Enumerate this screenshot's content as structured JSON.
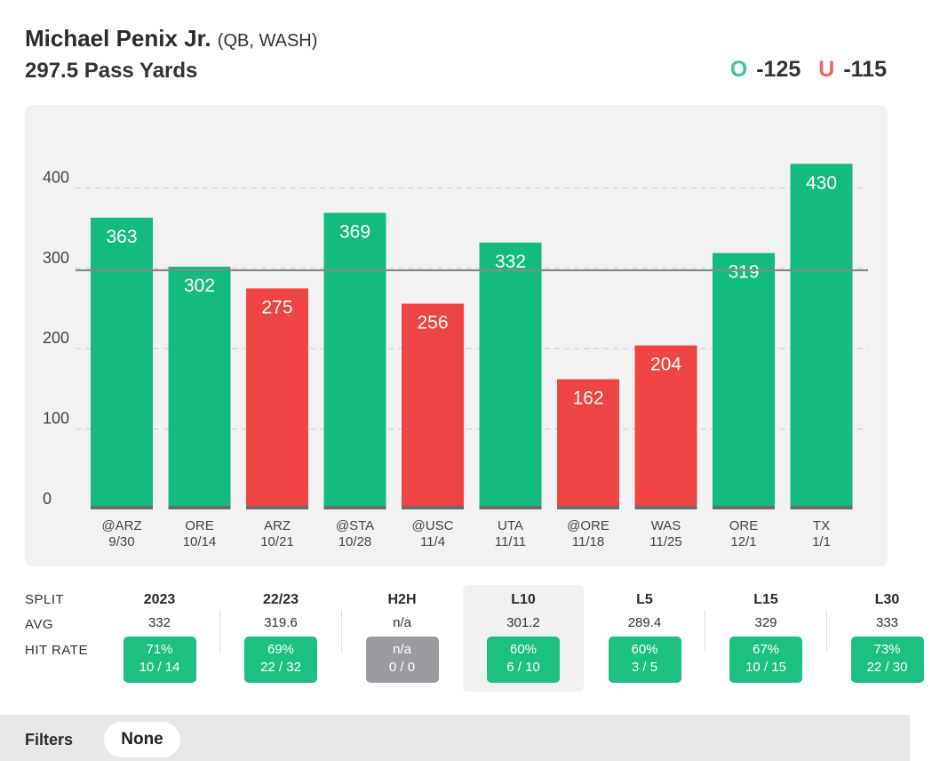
{
  "header": {
    "player_name": "Michael Penix Jr.",
    "player_meta": "(QB, WASH)",
    "prop_line": "297.5 Pass Yards",
    "over_letter": "O",
    "over_odds": "-125",
    "under_letter": "U",
    "under_odds": "-115"
  },
  "colors": {
    "over": "#13bb7e",
    "under": "#ef4444",
    "line": "#888888"
  },
  "chart_data": {
    "type": "bar",
    "title": "297.5 Pass Yards",
    "threshold": 297.5,
    "ylim": [
      0,
      450
    ],
    "yticks": [
      0,
      100,
      200,
      300,
      400
    ],
    "grid": true,
    "games": [
      {
        "opponent": "@ARZ",
        "date": "9/30",
        "value": 363
      },
      {
        "opponent": "ORE",
        "date": "10/14",
        "value": 302
      },
      {
        "opponent": "ARZ",
        "date": "10/21",
        "value": 275
      },
      {
        "opponent": "@STA",
        "date": "10/28",
        "value": 369
      },
      {
        "opponent": "@USC",
        "date": "11/4",
        "value": 256
      },
      {
        "opponent": "UTA",
        "date": "11/11",
        "value": 332
      },
      {
        "opponent": "@ORE",
        "date": "11/18",
        "value": 162
      },
      {
        "opponent": "WAS",
        "date": "11/25",
        "value": 204
      },
      {
        "opponent": "ORE",
        "date": "12/1",
        "value": 319
      },
      {
        "opponent": "TX",
        "date": "1/1",
        "value": 430
      }
    ]
  },
  "splits": {
    "row_labels": {
      "split": "SPLIT",
      "avg": "AVG",
      "hit_rate": "HIT RATE"
    },
    "columns": [
      {
        "label": "2023",
        "avg": "332",
        "pct": "71%",
        "frac": "10 / 14",
        "status": "green"
      },
      {
        "label": "22/23",
        "avg": "319.6",
        "pct": "69%",
        "frac": "22 / 32",
        "status": "green"
      },
      {
        "label": "H2H",
        "avg": "n/a",
        "pct": "n/a",
        "frac": "0 / 0",
        "status": "grey"
      },
      {
        "label": "L10",
        "avg": "301.2",
        "pct": "60%",
        "frac": "6 / 10",
        "status": "green",
        "selected": true
      },
      {
        "label": "L5",
        "avg": "289.4",
        "pct": "60%",
        "frac": "3 / 5",
        "status": "green"
      },
      {
        "label": "L15",
        "avg": "329",
        "pct": "67%",
        "frac": "10 / 15",
        "status": "green"
      },
      {
        "label": "L30",
        "avg": "333",
        "pct": "73%",
        "frac": "22 / 30",
        "status": "green"
      }
    ]
  },
  "filters": {
    "label": "Filters",
    "chip": "None"
  }
}
